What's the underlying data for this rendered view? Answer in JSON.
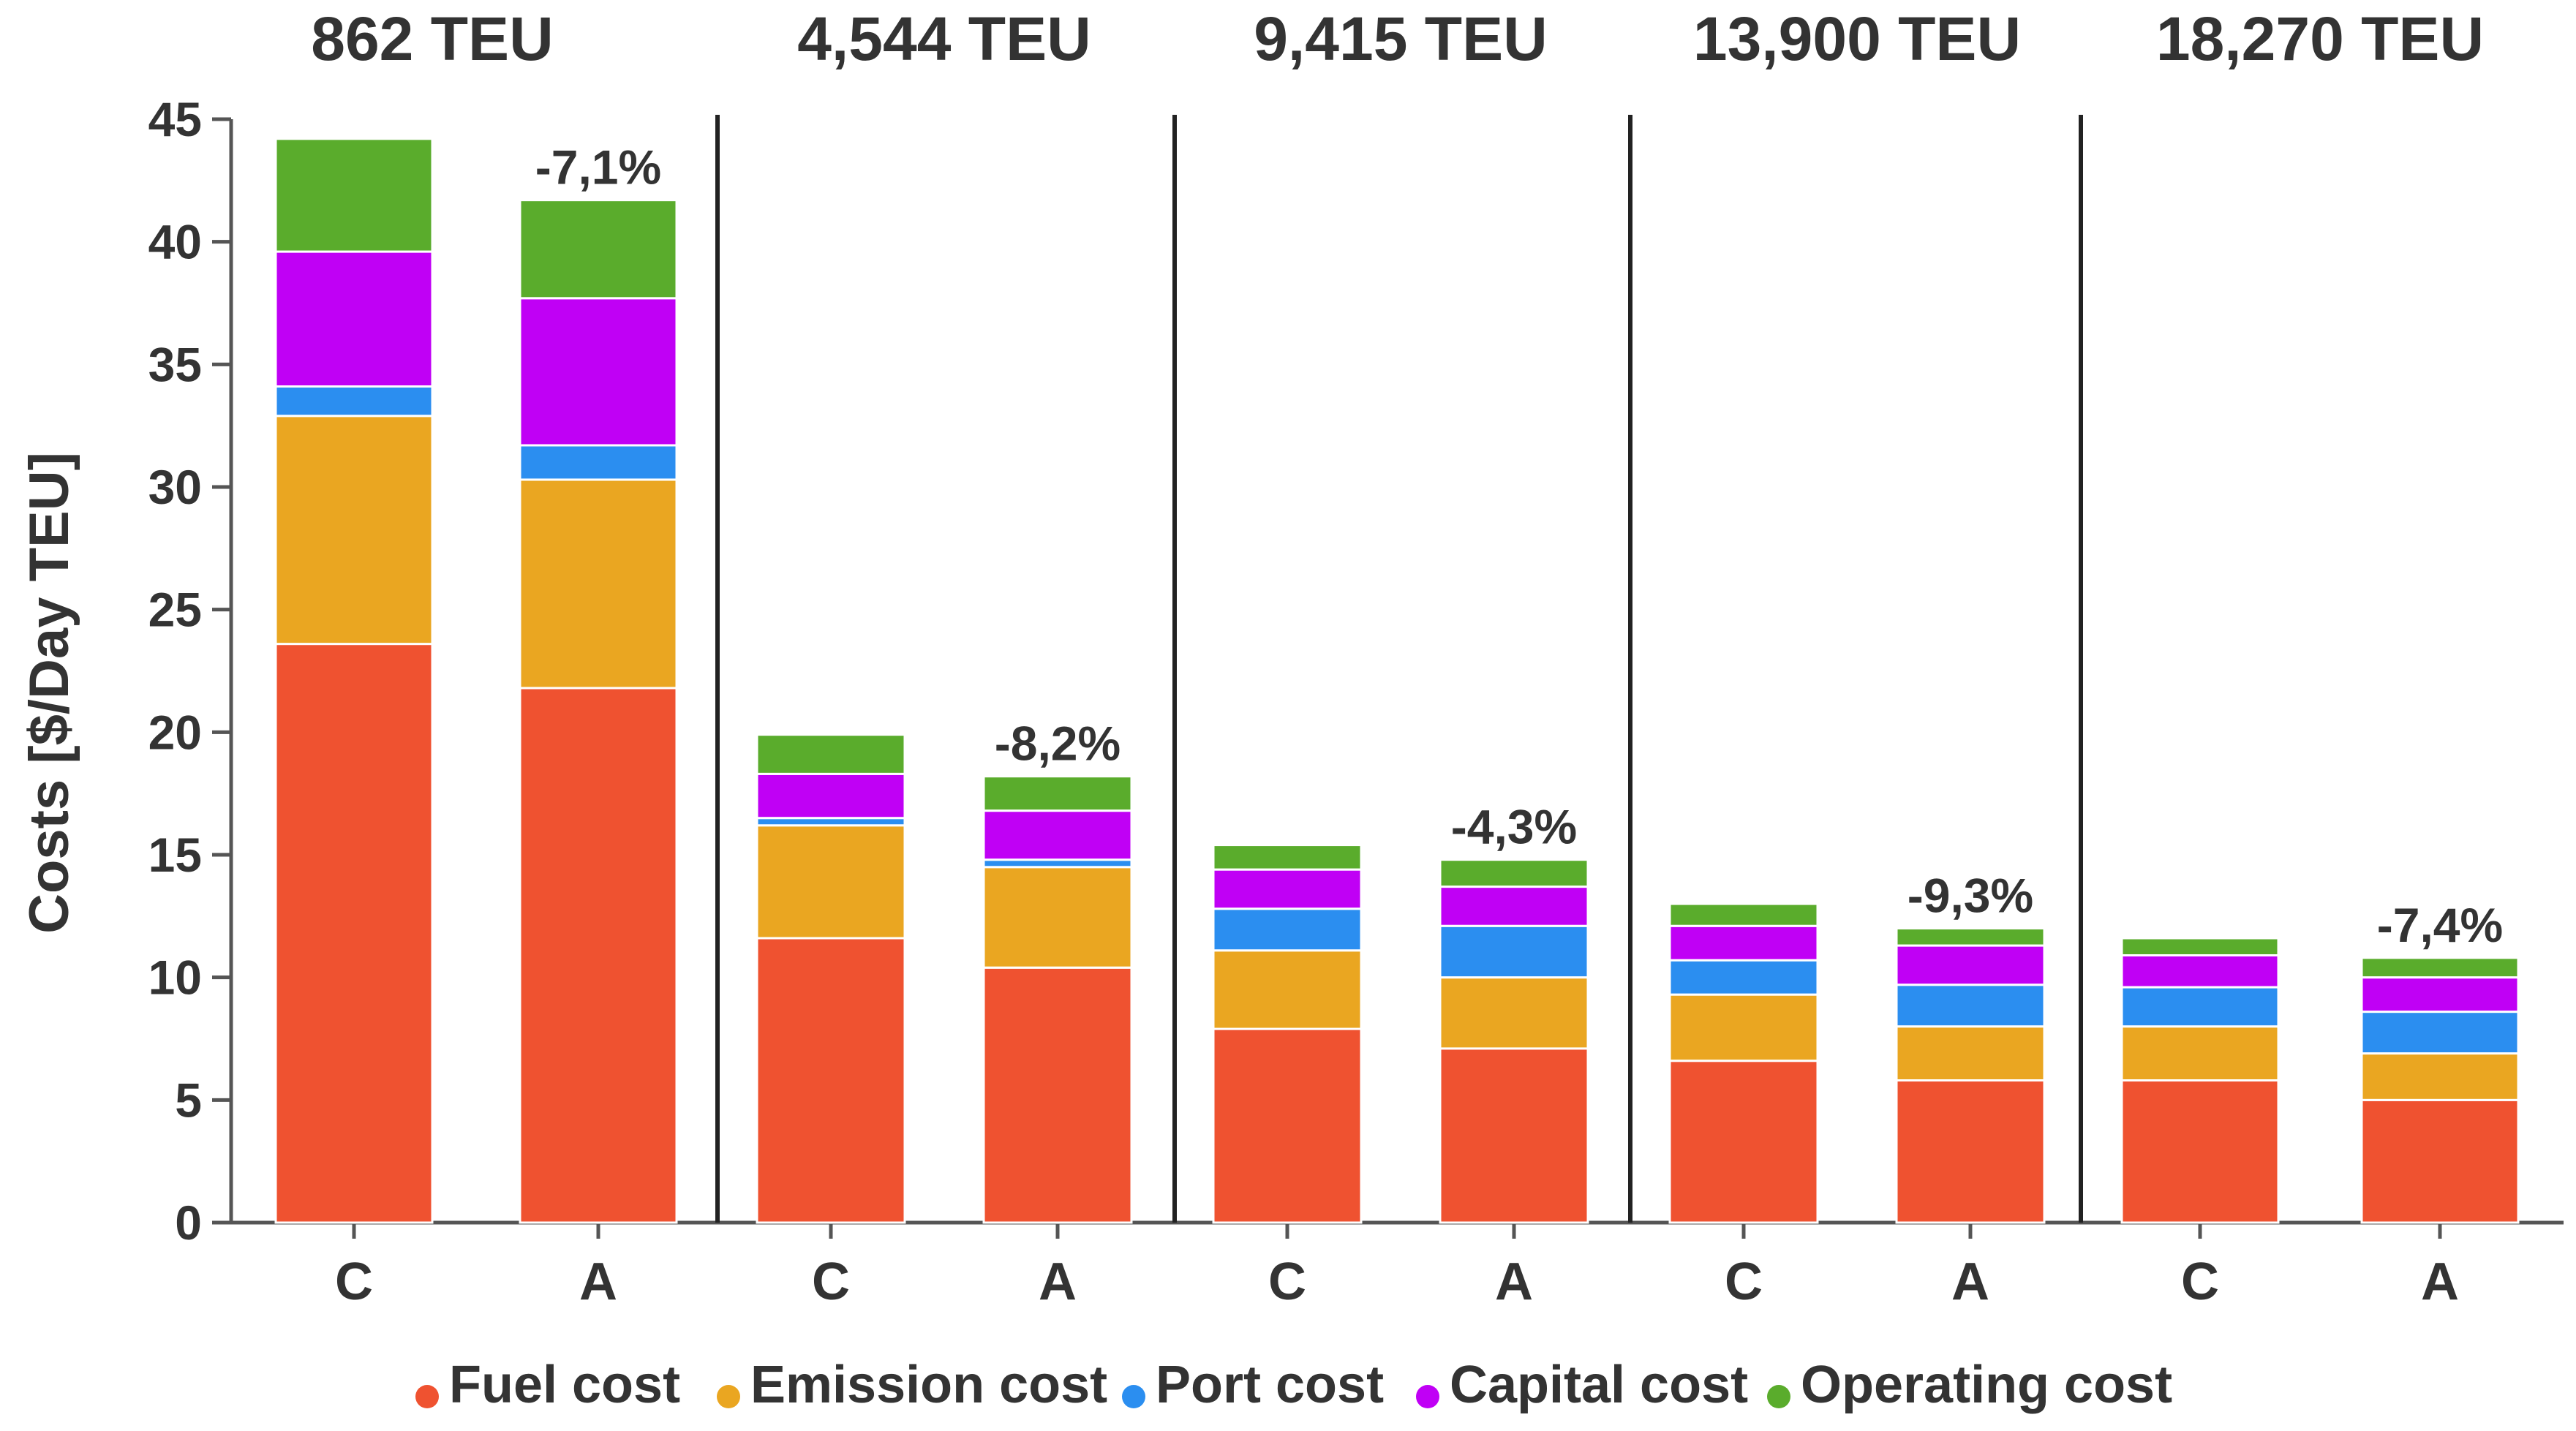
{
  "chart_data": {
    "type": "bar",
    "stacked": true,
    "ylabel": "Costs [$/Day TEU]",
    "ylim": [
      0,
      45
    ],
    "yticks": [
      0,
      5,
      10,
      15,
      20,
      25,
      30,
      35,
      40,
      45
    ],
    "legend_position": "bottom",
    "groups": [
      {
        "title": "862 TEU",
        "bars": [
          {
            "label": "C",
            "values": [
              23.6,
              9.3,
              1.2,
              5.5,
              4.6
            ]
          },
          {
            "label": "A",
            "values": [
              21.8,
              8.5,
              1.4,
              6.0,
              4.0
            ],
            "change": "-7,1%"
          }
        ]
      },
      {
        "title": "4,544 TEU",
        "bars": [
          {
            "label": "C",
            "values": [
              11.6,
              4.6,
              0.3,
              1.8,
              1.6
            ]
          },
          {
            "label": "A",
            "values": [
              10.4,
              4.1,
              0.3,
              2.0,
              1.4
            ],
            "change": "-8,2%"
          }
        ]
      },
      {
        "title": "9,415 TEU",
        "bars": [
          {
            "label": "C",
            "values": [
              7.9,
              3.2,
              1.7,
              1.6,
              1.0
            ]
          },
          {
            "label": "A",
            "values": [
              7.1,
              2.9,
              2.1,
              1.6,
              1.1
            ],
            "change": "-4,3%"
          }
        ]
      },
      {
        "title": "13,900 TEU",
        "bars": [
          {
            "label": "C",
            "values": [
              6.6,
              2.7,
              1.4,
              1.4,
              0.9
            ]
          },
          {
            "label": "A",
            "values": [
              5.8,
              2.2,
              1.7,
              1.6,
              0.7
            ],
            "change": "-9,3%"
          }
        ]
      },
      {
        "title": "18,270 TEU",
        "bars": [
          {
            "label": "C",
            "values": [
              5.8,
              2.2,
              1.6,
              1.3,
              0.7
            ]
          },
          {
            "label": "A",
            "values": [
              5.0,
              1.9,
              1.7,
              1.4,
              0.8
            ],
            "change": "-7,4%"
          }
        ]
      }
    ],
    "series": [
      {
        "name": "Fuel cost",
        "color": "#ef5230"
      },
      {
        "name": "Emission cost",
        "color": "#eaa621"
      },
      {
        "name": "Port cost",
        "color": "#2b8ef0"
      },
      {
        "name": "Capital cost",
        "color": "#c000f5"
      },
      {
        "name": "Operating cost",
        "color": "#5aac2c"
      }
    ]
  }
}
